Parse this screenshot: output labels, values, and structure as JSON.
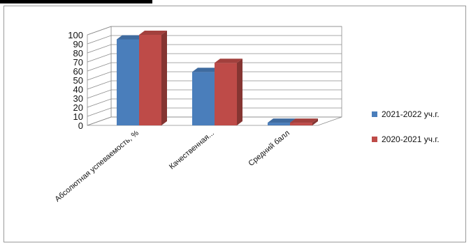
{
  "chart_data": {
    "type": "bar",
    "categories": [
      "Абсолютная успеваемость, %",
      "Качественная...",
      "Средний балл"
    ],
    "series": [
      {
        "name": "2021-2022 уч.г.",
        "values": [
          95,
          59,
          3
        ],
        "color": "#4a7ebb"
      },
      {
        "name": "2020-2021 уч.г.",
        "values": [
          100,
          69,
          3
        ],
        "color": "#be4b48"
      }
    ],
    "ylim": [
      0,
      100
    ],
    "yticks": [
      "0",
      "10",
      "20",
      "30",
      "40",
      "50",
      "60",
      "70",
      "80",
      "90",
      "100"
    ],
    "grid": true,
    "legend_position": "right",
    "three_d": true
  }
}
